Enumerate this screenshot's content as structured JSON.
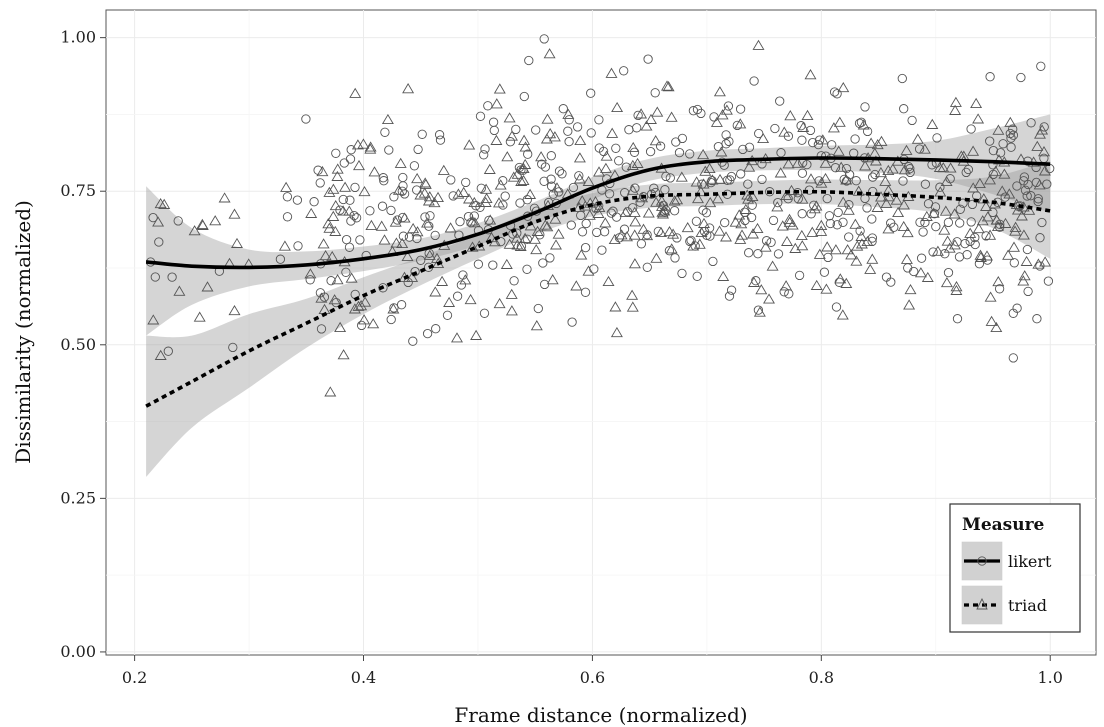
{
  "chart_data": {
    "type": "scatter",
    "title": "",
    "xlabel": "Frame distance (normalized)",
    "ylabel": "Dissimilarity (normalized)",
    "xlim": [
      0.175,
      1.04
    ],
    "ylim": [
      -0.005,
      1.045
    ],
    "x_ticks": [
      0.2,
      0.4,
      0.6,
      0.8,
      1.0
    ],
    "x_tick_labels": [
      "0.2",
      "0.4",
      "0.6",
      "0.8",
      "1.0"
    ],
    "y_ticks": [
      0.0,
      0.25,
      0.5,
      0.75,
      1.0
    ],
    "y_tick_labels": [
      "0.00",
      "0.25",
      "0.50",
      "0.75",
      "1.00"
    ],
    "grid": true,
    "legend": {
      "title": "Measure",
      "position": "bottom-right",
      "entries": [
        "likert",
        "triad"
      ]
    },
    "colors": {
      "points": "#555555",
      "band": "#9a9a9a",
      "lines": "#000000",
      "grid": "#ebebeb"
    },
    "point_count_per_series_approx": 450,
    "series": [
      {
        "name": "likert",
        "marker": "circle",
        "line_style": "solid",
        "smooth": {
          "x": [
            0.21,
            0.25,
            0.3,
            0.35,
            0.4,
            0.45,
            0.5,
            0.55,
            0.6,
            0.65,
            0.7,
            0.75,
            0.8,
            0.85,
            0.9,
            0.95,
            1.0
          ],
          "y": [
            0.635,
            0.628,
            0.626,
            0.63,
            0.64,
            0.655,
            0.68,
            0.715,
            0.755,
            0.785,
            0.798,
            0.802,
            0.804,
            0.803,
            0.801,
            0.798,
            0.794
          ],
          "ymin": [
            0.515,
            0.565,
            0.595,
            0.607,
            0.62,
            0.637,
            0.662,
            0.697,
            0.737,
            0.767,
            0.78,
            0.784,
            0.784,
            0.78,
            0.77,
            0.745,
            0.715
          ],
          "ymax": [
            0.758,
            0.69,
            0.655,
            0.652,
            0.66,
            0.673,
            0.698,
            0.733,
            0.773,
            0.803,
            0.816,
            0.82,
            0.824,
            0.826,
            0.832,
            0.852,
            0.875
          ]
        }
      },
      {
        "name": "triad",
        "marker": "triangle",
        "line_style": "dashed",
        "smooth": {
          "x": [
            0.21,
            0.25,
            0.3,
            0.35,
            0.4,
            0.45,
            0.5,
            0.55,
            0.6,
            0.65,
            0.7,
            0.75,
            0.8,
            0.85,
            0.9,
            0.95,
            1.0
          ],
          "y": [
            0.4,
            0.44,
            0.49,
            0.535,
            0.58,
            0.62,
            0.66,
            0.7,
            0.728,
            0.742,
            0.745,
            0.748,
            0.749,
            0.745,
            0.74,
            0.732,
            0.718
          ],
          "ymin": [
            0.285,
            0.365,
            0.43,
            0.495,
            0.55,
            0.597,
            0.64,
            0.68,
            0.709,
            0.723,
            0.726,
            0.729,
            0.729,
            0.724,
            0.715,
            0.69,
            0.64
          ],
          "ymax": [
            0.515,
            0.515,
            0.55,
            0.575,
            0.61,
            0.643,
            0.68,
            0.72,
            0.747,
            0.761,
            0.764,
            0.767,
            0.769,
            0.768,
            0.768,
            0.774,
            0.8
          ]
        }
      }
    ]
  }
}
